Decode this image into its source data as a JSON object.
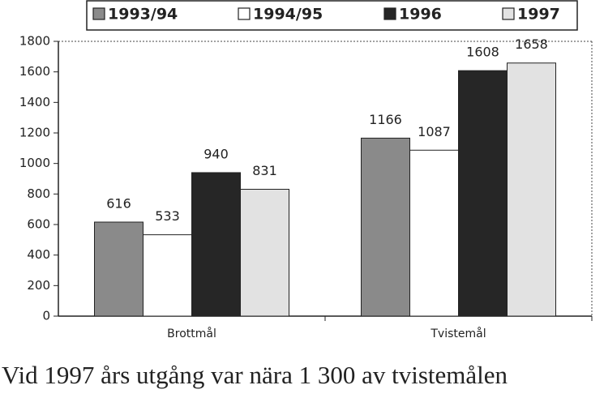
{
  "chart_data": {
    "type": "bar",
    "categories": [
      "Brottmål",
      "Tvistemål"
    ],
    "series": [
      {
        "name": "1993/94",
        "color": "#8a8a8a",
        "values": [
          616,
          1166
        ]
      },
      {
        "name": "1994/95",
        "color": "#ffffff",
        "values": [
          533,
          1087
        ]
      },
      {
        "name": "1996",
        "color": "#262626",
        "values": [
          940,
          1608
        ]
      },
      {
        "name": "1997",
        "color": "#e2e2e2",
        "values": [
          831,
          1658
        ]
      }
    ],
    "ylim": [
      0,
      1800
    ],
    "yticks": [
      0,
      200,
      400,
      600,
      800,
      1000,
      1200,
      1400,
      1600,
      1800
    ],
    "grid": false,
    "legend": "top",
    "caption": "Vid 1997 års utgång var nära 1 300 av tvistemålen"
  }
}
